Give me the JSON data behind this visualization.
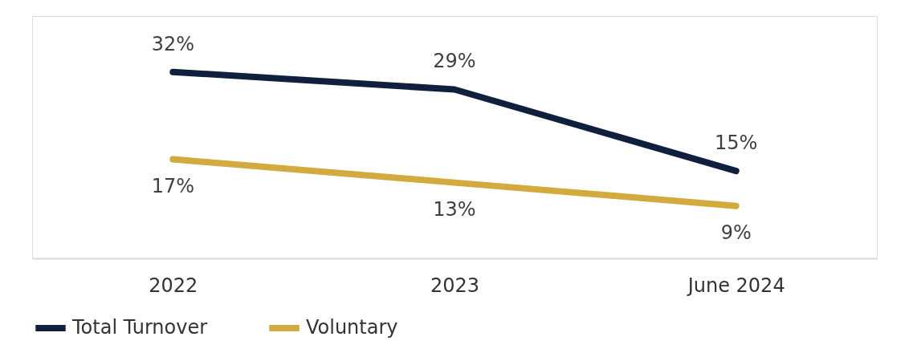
{
  "chart_data": {
    "type": "line",
    "categories": [
      "2022",
      "2023",
      "June 2024"
    ],
    "series": [
      {
        "name": "Total Turnover",
        "color": "#0f1f3d",
        "values": [
          32,
          29,
          15
        ],
        "value_labels": [
          "32%",
          "29%",
          "15%"
        ]
      },
      {
        "name": "Voluntary",
        "color": "#d2aa3e",
        "values": [
          17,
          13,
          9
        ],
        "value_labels": [
          "17%",
          "13%",
          "9%"
        ]
      }
    ],
    "legend": "bottom",
    "line_style": "solid"
  }
}
